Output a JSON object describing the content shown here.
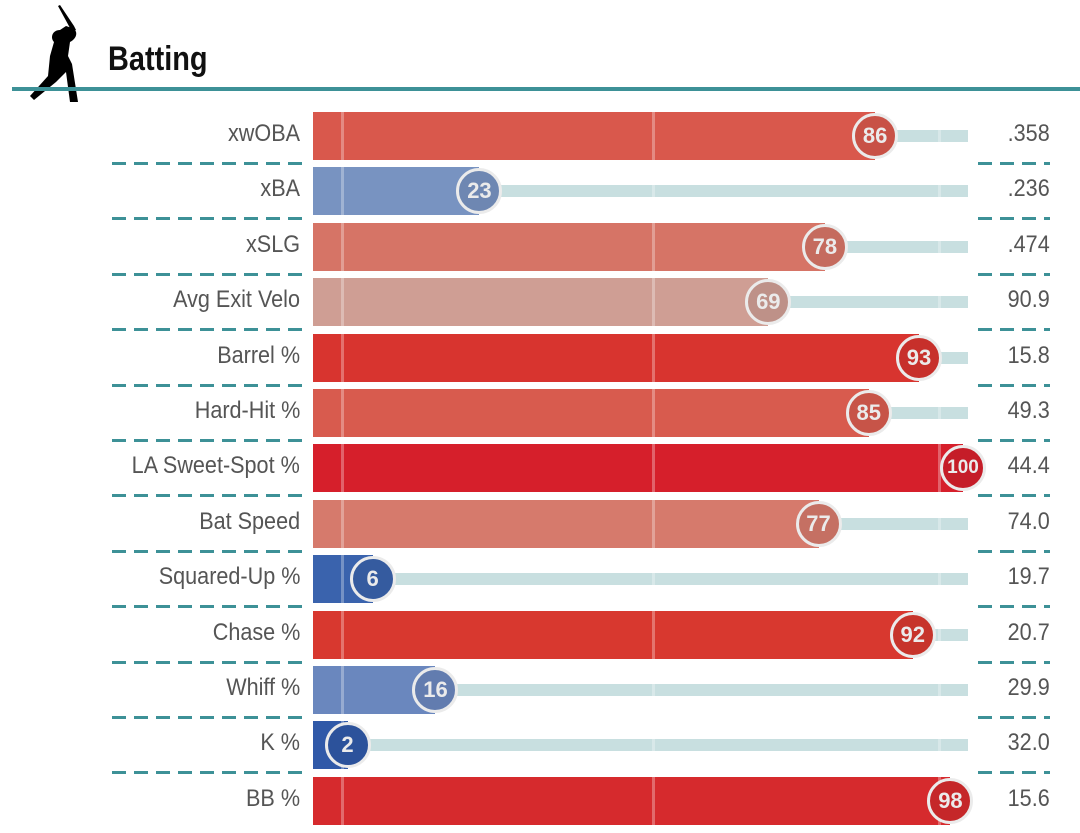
{
  "header": {
    "title": "Batting",
    "icon": "batter-silhouette-icon"
  },
  "chart_data": {
    "type": "bar",
    "orientation": "horizontal",
    "xlim": [
      0,
      100
    ],
    "categories": [
      "xwOBA",
      "xBA",
      "xSLG",
      "Avg Exit Velo",
      "Barrel %",
      "Hard-Hit %",
      "LA Sweet-Spot %",
      "Bat Speed",
      "Squared-Up %",
      "Chase %",
      "Whiff %",
      "K %",
      "BB %"
    ],
    "percentiles": [
      86,
      23,
      78,
      69,
      93,
      85,
      100,
      77,
      6,
      92,
      16,
      2,
      98
    ],
    "values": [
      ".358",
      ".236",
      ".474",
      "90.9",
      "15.8",
      "49.3",
      "44.4",
      "74.0",
      "19.7",
      "20.7",
      "29.9",
      "32.0",
      "15.6"
    ],
    "colors": [
      "#d9584c",
      "#7893c1",
      "#d67466",
      "#cf9e94",
      "#d8342f",
      "#d85b4e",
      "#d61f2b",
      "#d67a6c",
      "#3a63ad",
      "#d8382f",
      "#6a87be",
      "#3059a8",
      "#d62a2d"
    ]
  }
}
